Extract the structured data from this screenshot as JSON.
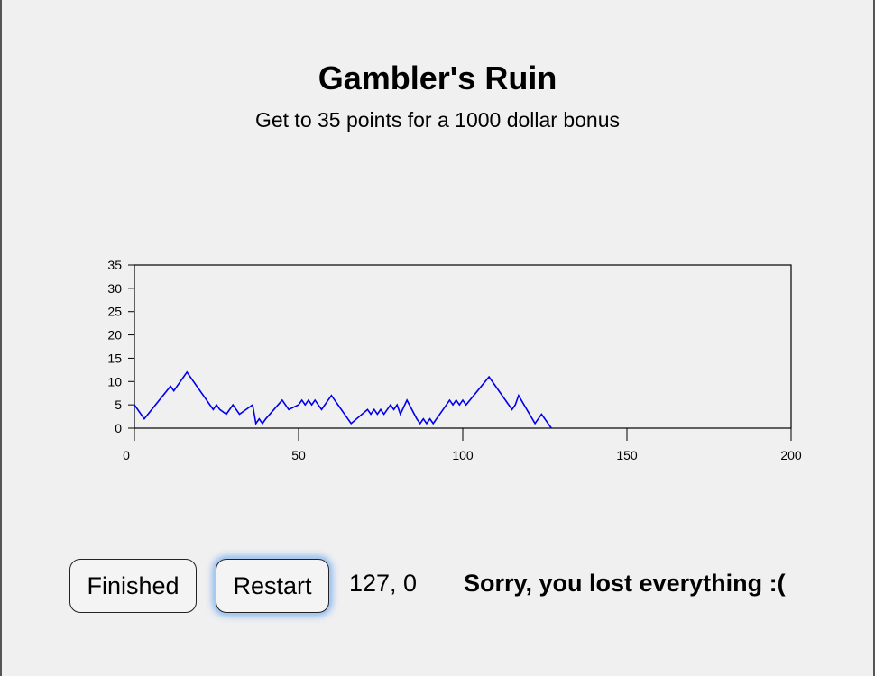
{
  "header": {
    "title": "Gambler's Ruin",
    "subtitle": "Get to 35 points for a 1000 dollar bonus"
  },
  "controls": {
    "finished_label": "Finished",
    "restart_label": "Restart"
  },
  "status": {
    "step_and_points": "127, 0",
    "message": "Sorry, you lost everything :("
  },
  "colors": {
    "line": "#0000ee"
  },
  "chart_data": {
    "type": "line",
    "xlim": [
      0,
      200
    ],
    "ylim": [
      0,
      35
    ],
    "x_ticks": [
      0,
      50,
      100,
      150,
      200
    ],
    "y_ticks": [
      0,
      5,
      10,
      15,
      20,
      25,
      30,
      35
    ],
    "series": [
      {
        "x": [
          0,
          3,
          11,
          12,
          16,
          24,
          25,
          26,
          28,
          30,
          32,
          36,
          37,
          38,
          39,
          40,
          45,
          47,
          50,
          51,
          52,
          53,
          54,
          55,
          57,
          58,
          59,
          60,
          61,
          62,
          66,
          71,
          72,
          73,
          74,
          75,
          76,
          77,
          78,
          79,
          80,
          81,
          83,
          86,
          87,
          88,
          89,
          90,
          91,
          96,
          97,
          98,
          99,
          100,
          101,
          108,
          115,
          116,
          117,
          122,
          124,
          127
        ],
        "y": [
          5,
          2,
          9,
          8,
          12,
          4,
          5,
          4,
          3,
          5,
          3,
          5,
          1,
          2,
          1,
          2,
          6,
          4,
          5,
          6,
          5,
          6,
          5,
          6,
          4,
          5,
          6,
          7,
          6,
          5,
          1,
          4,
          3,
          4,
          3,
          4,
          3,
          4,
          5,
          4,
          5,
          3,
          6,
          2,
          1,
          2,
          1,
          2,
          1,
          6,
          5,
          6,
          5,
          6,
          5,
          11,
          4,
          5,
          7,
          1,
          3,
          0
        ]
      }
    ]
  }
}
